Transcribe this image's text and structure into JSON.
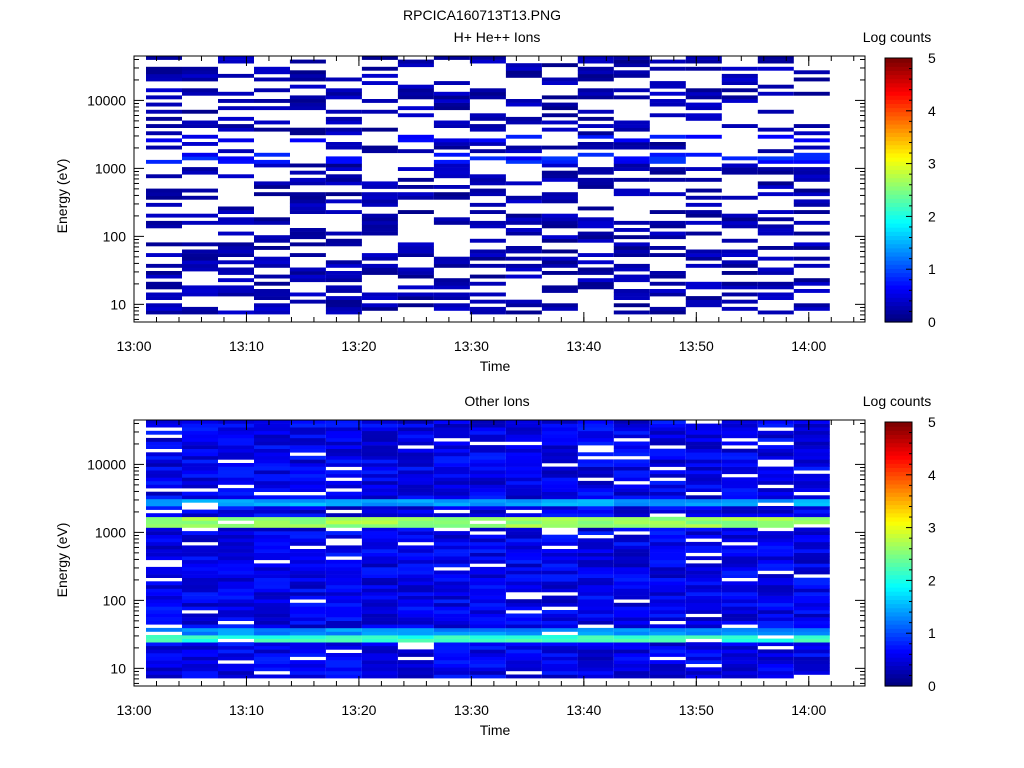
{
  "figure": {
    "filename": "RPCICA160713T13.PNG"
  },
  "chart_data": [
    {
      "type": "heatmap",
      "title": "H+ He++ Ions",
      "xlabel": "Time",
      "ylabel": "Energy (eV)",
      "x_range": [
        "13:00",
        "14:05"
      ],
      "x_ticks": [
        "13:00",
        "13:10",
        "13:20",
        "13:30",
        "13:40",
        "13:50",
        "14:00"
      ],
      "y_scale": "log",
      "y_range": [
        5.5,
        45000
      ],
      "y_ticks": [
        "10",
        "100",
        "1000",
        "10000"
      ],
      "colorbar": {
        "label": "Log counts",
        "range": [
          0,
          5
        ],
        "ticks": [
          "0",
          "1",
          "2",
          "3",
          "4",
          "5"
        ],
        "colormap": "jet"
      },
      "time_columns": [
        "13:02:40",
        "13:05:52",
        "13:09:04",
        "13:12:16",
        "13:15:28",
        "13:18:40",
        "13:21:52",
        "13:25:04",
        "13:28:16",
        "13:31:28",
        "13:34:40",
        "13:37:52",
        "13:41:04",
        "13:44:16",
        "13:47:28",
        "13:50:40",
        "13:53:52",
        "13:57:04",
        "14:00:16"
      ],
      "dominant_features": [
        {
          "energy_ev": 1400,
          "log_counts": 0.9
        },
        {
          "energy_ev": 2800,
          "log_counts": 0.8
        }
      ],
      "sparse": true
    },
    {
      "type": "heatmap",
      "title": "Other Ions",
      "xlabel": "Time",
      "ylabel": "Energy (eV)",
      "x_range": [
        "13:00",
        "14:05"
      ],
      "x_ticks": [
        "13:00",
        "13:10",
        "13:20",
        "13:30",
        "13:40",
        "13:50",
        "14:00"
      ],
      "y_scale": "log",
      "y_range": [
        5.5,
        45000
      ],
      "y_ticks": [
        "10",
        "100",
        "1000",
        "10000"
      ],
      "colorbar": {
        "label": "Log counts",
        "range": [
          0,
          5
        ],
        "ticks": [
          "0",
          "1",
          "2",
          "3",
          "4",
          "5"
        ],
        "colormap": "jet"
      },
      "time_columns": [
        "13:02:40",
        "13:05:52",
        "13:09:04",
        "13:12:16",
        "13:15:28",
        "13:18:40",
        "13:21:52",
        "13:25:04",
        "13:28:16",
        "13:31:28",
        "13:34:40",
        "13:37:52",
        "13:41:04",
        "13:44:16",
        "13:47:28",
        "13:50:40",
        "13:53:52",
        "13:57:04",
        "14:00:16"
      ],
      "dominant_features": [
        {
          "energy_ev": 1400,
          "log_counts": 2.8
        },
        {
          "energy_ev": 2800,
          "log_counts": 1.6
        },
        {
          "energy_ev": 28,
          "log_counts": 2.3
        },
        {
          "energy_ev": 33,
          "log_counts": 1.5
        }
      ],
      "sparse": false
    }
  ]
}
